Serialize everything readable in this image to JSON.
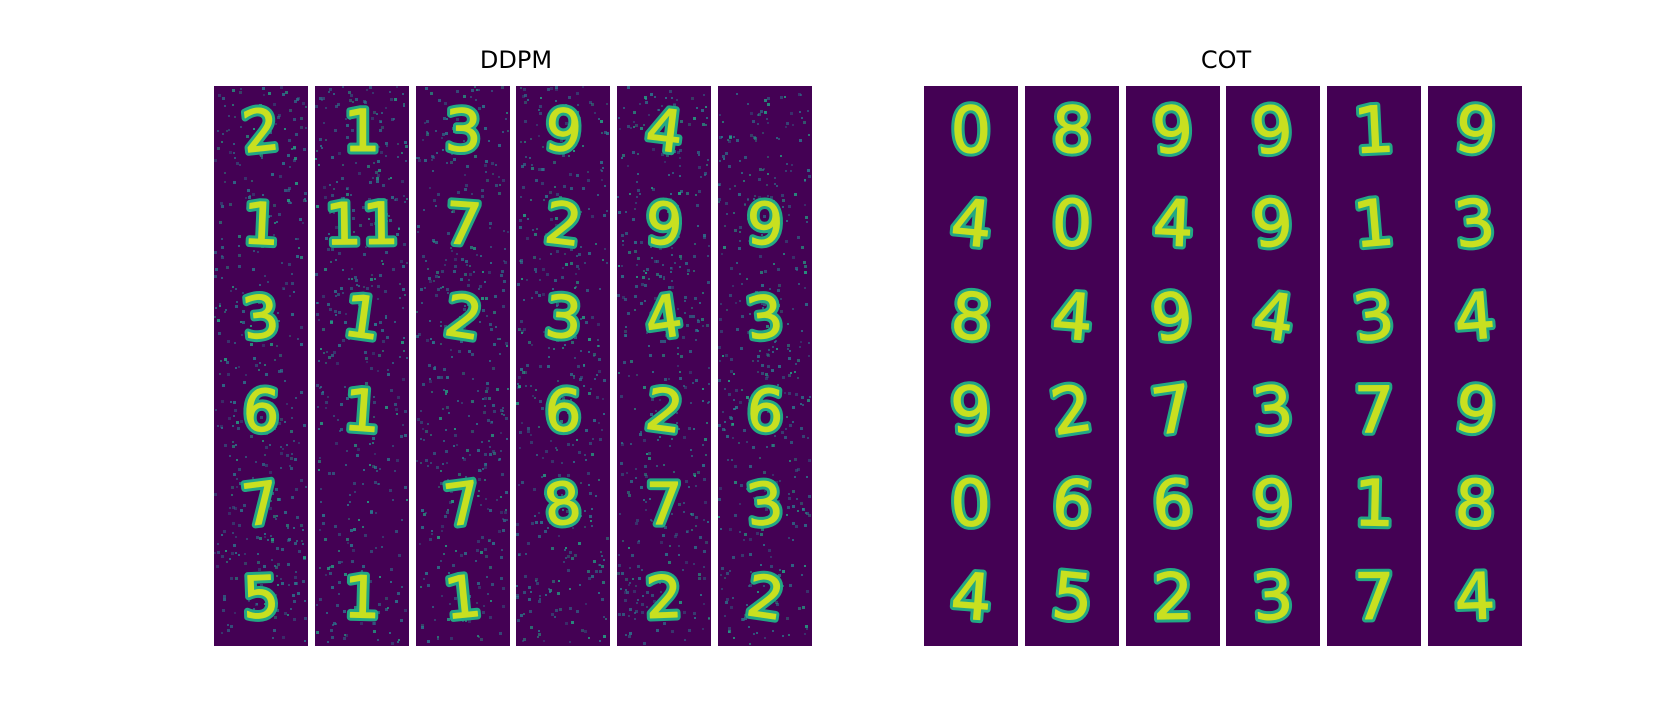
{
  "figure": {
    "colors": {
      "background": "#440154",
      "stroke": "#c8e020",
      "halo": "#22a884",
      "noise": "#2a788e"
    },
    "panels": [
      {
        "id": "ddpm",
        "title": "DDPM",
        "style": "noisy",
        "columns": [
          [
            "2",
            "1",
            "3",
            "6",
            "7",
            "5"
          ],
          [
            "1",
            "11",
            "1",
            "1",
            "",
            "1"
          ],
          [
            "3",
            "7",
            "2",
            "",
            "7",
            "1"
          ],
          [
            "9",
            "2",
            "3",
            "6",
            "8",
            ""
          ],
          [
            "4",
            "9",
            "4",
            "2",
            "7",
            "2"
          ],
          [
            "",
            "9",
            "3",
            "6",
            "3",
            "2"
          ]
        ]
      },
      {
        "id": "cot",
        "title": "COT",
        "style": "smooth",
        "columns": [
          [
            "0",
            "4",
            "8",
            "9",
            "0",
            "4"
          ],
          [
            "8",
            "0",
            "4",
            "2",
            "6",
            "5"
          ],
          [
            "9",
            "4",
            "9",
            "7",
            "6",
            "2"
          ],
          [
            "9",
            "9",
            "4",
            "3",
            "9",
            "3"
          ],
          [
            "1",
            "1",
            "3",
            "7",
            "1",
            "7"
          ],
          [
            "9",
            "3",
            "4",
            "9",
            "8",
            "4"
          ]
        ]
      }
    ]
  }
}
